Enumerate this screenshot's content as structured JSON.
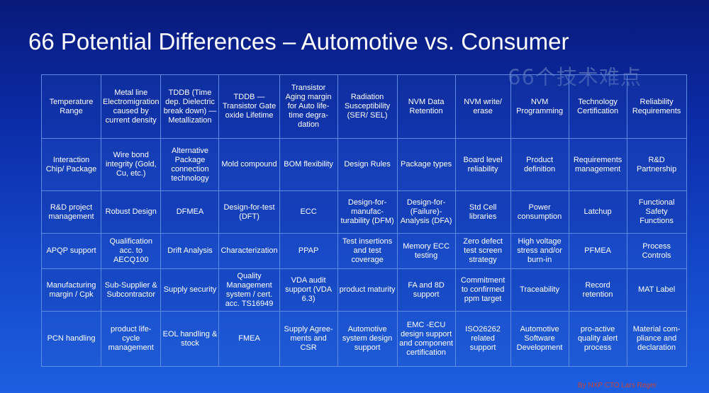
{
  "title": "66 Potential Differences – Automotive vs. Consumer",
  "watermark": "66个技术难点",
  "credit": "By NXP CTO Lars Reger",
  "rows": [
    [
      "Temperature Range",
      "Metal line Electromigration caused by current density",
      "TDDB (Time dep. Dielectric break down) — Metallization",
      "TDDB — Transistor Gate oxide Lifetime",
      "Transistor Aging margin for Auto life-time degra-dation",
      "Radiation Susceptibility (SER/ SEL)",
      "NVM Data Retention",
      "NVM write/ erase",
      "NVM Programming",
      "Technology Certification",
      "Reliability Requirements"
    ],
    [
      "Interaction Chip/ Package",
      "Wire bond integrity (Gold, Cu, etc.)",
      "Alternative Package connection technology",
      "Mold compound",
      "BOM flexibility",
      "Design Rules",
      "Package types",
      "Board level reliability",
      "Product definition",
      "Requirements management",
      "R&D Partnership"
    ],
    [
      "R&D project management",
      "Robust Design",
      "DFMEA",
      "Design-for-test (DFT)",
      "ECC",
      "Design-for-manufac-turability (DFM)",
      "Design-for-(Failure)-Analysis (DFA)",
      "Std Cell libraries",
      "Power consumption",
      "Latchup",
      "Functional Safety Functions"
    ],
    [
      "APQP support",
      "Qualification acc. to AECQ100",
      "Drift Analysis",
      "Characterization",
      "PPAP",
      "Test insertions and test coverage",
      "Memory ECC testing",
      "Zero defect test screen strategy",
      "High voltage stress and/or burn-in",
      "PFMEA",
      "Process Controls"
    ],
    [
      "Manufacturing margin / Cpk",
      "Sub-Supplier & Subcontractor",
      "Supply security",
      "Quality Management system / cert. acc. TS16949",
      "VDA audit support (VDA 6.3)",
      "product maturity",
      "FA and 8D support",
      "Commitment to confirmed ppm target",
      "Traceability",
      "Record retention",
      "MAT Label"
    ],
    [
      "PCN handling",
      "product life-cycle management",
      "EOL handling & stock",
      "FMEA",
      "Supply Agree-ments and CSR",
      "Automotive system design support",
      "EMC -ECU design support and component certification",
      "ISO26262 related support",
      "Automotive Software Development",
      "pro-active quality alert process",
      "Material com-pliance and declaration"
    ]
  ]
}
